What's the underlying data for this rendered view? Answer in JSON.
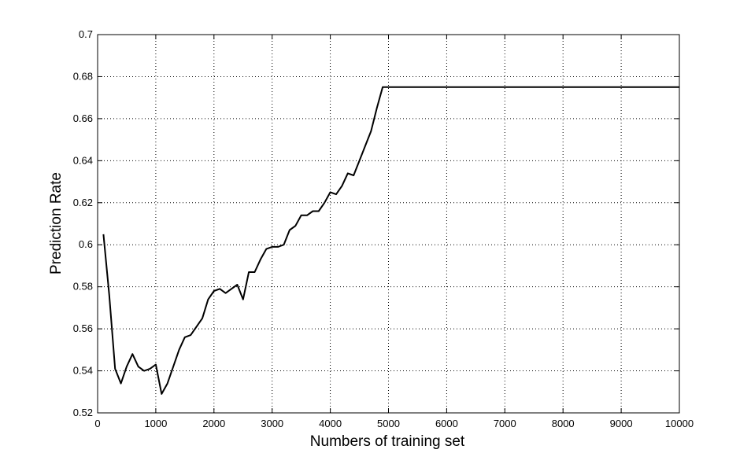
{
  "chart_data": {
    "type": "line",
    "title": "",
    "xlabel": "Numbers of training set",
    "ylabel": "Prediction Rate",
    "xlim": [
      0,
      10000
    ],
    "ylim": [
      0.52,
      0.7
    ],
    "xticks": [
      0,
      1000,
      2000,
      3000,
      4000,
      5000,
      6000,
      7000,
      8000,
      9000,
      10000
    ],
    "yticks": [
      0.52,
      0.54,
      0.56,
      0.58,
      0.6,
      0.62,
      0.64,
      0.66,
      0.68,
      0.7
    ],
    "xtick_labels": [
      "0",
      "1000",
      "2000",
      "3000",
      "4000",
      "5000",
      "6000",
      "7000",
      "8000",
      "9000",
      "10000"
    ],
    "ytick_labels": [
      "0.52",
      "0.54",
      "0.56",
      "0.58",
      "0.6",
      "0.62",
      "0.64",
      "0.66",
      "0.68",
      "0.7"
    ],
    "grid": true,
    "grid_style": "dotted",
    "line_color": "#000000",
    "series": [
      {
        "x": [
          100,
          200,
          300,
          400,
          500,
          600,
          700,
          800,
          900,
          1000,
          1100,
          1200,
          1300,
          1400,
          1500,
          1600,
          1700,
          1800,
          1900,
          2000,
          2100,
          2200,
          2300,
          2400,
          2500,
          2600,
          2700,
          2800,
          2900,
          3000,
          3100,
          3200,
          3300,
          3400,
          3500,
          3600,
          3700,
          3800,
          3900,
          4000,
          4100,
          4200,
          4300,
          4400,
          4500,
          4600,
          4700,
          4800,
          4900,
          5000,
          10000
        ],
        "y": [
          0.605,
          0.576,
          0.541,
          0.534,
          0.542,
          0.548,
          0.542,
          0.54,
          0.541,
          0.543,
          0.529,
          0.534,
          0.542,
          0.55,
          0.556,
          0.557,
          0.561,
          0.565,
          0.574,
          0.578,
          0.579,
          0.577,
          0.579,
          0.581,
          0.574,
          0.587,
          0.587,
          0.593,
          0.598,
          0.599,
          0.599,
          0.6,
          0.607,
          0.609,
          0.614,
          0.614,
          0.616,
          0.616,
          0.62,
          0.625,
          0.624,
          0.628,
          0.634,
          0.633,
          0.64,
          0.647,
          0.654,
          0.665,
          0.675,
          0.675,
          0.675
        ]
      }
    ]
  }
}
